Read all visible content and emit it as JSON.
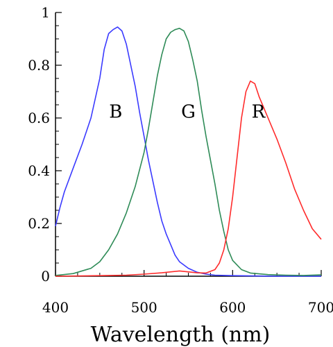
{
  "chart_data": {
    "type": "line",
    "title": "",
    "xlabel": "Wavelength (nm)",
    "ylabel": "",
    "xlim": [
      400,
      700
    ],
    "ylim": [
      0,
      1
    ],
    "x_ticks": [
      400,
      500,
      600,
      700
    ],
    "x_tick_labels": [
      "400",
      "500",
      "600",
      "700"
    ],
    "y_ticks": [
      0,
      0.2,
      0.4,
      0.6,
      0.8,
      1
    ],
    "y_tick_labels": [
      "0",
      "0.2",
      "0.4",
      "0.6",
      "0.8",
      "1"
    ],
    "grid": false,
    "legend": "none",
    "series": [
      {
        "name": "B",
        "color": "#3a3aff",
        "points": [
          [
            400,
            0.19
          ],
          [
            405,
            0.26
          ],
          [
            410,
            0.32
          ],
          [
            420,
            0.41
          ],
          [
            430,
            0.5
          ],
          [
            440,
            0.6
          ],
          [
            450,
            0.75
          ],
          [
            455,
            0.86
          ],
          [
            460,
            0.92
          ],
          [
            465,
            0.935
          ],
          [
            470,
            0.945
          ],
          [
            475,
            0.93
          ],
          [
            480,
            0.88
          ],
          [
            485,
            0.8
          ],
          [
            490,
            0.72
          ],
          [
            495,
            0.62
          ],
          [
            500,
            0.53
          ],
          [
            505,
            0.44
          ],
          [
            510,
            0.36
          ],
          [
            515,
            0.28
          ],
          [
            520,
            0.21
          ],
          [
            525,
            0.16
          ],
          [
            530,
            0.12
          ],
          [
            535,
            0.08
          ],
          [
            540,
            0.055
          ],
          [
            550,
            0.03
          ],
          [
            560,
            0.015
          ],
          [
            570,
            0.008
          ],
          [
            580,
            0.004
          ],
          [
            600,
            0.002
          ],
          [
            650,
            0.0
          ],
          [
            700,
            0.0
          ]
        ]
      },
      {
        "name": "G",
        "color": "#2e8b57",
        "points": [
          [
            400,
            0.003
          ],
          [
            420,
            0.01
          ],
          [
            440,
            0.03
          ],
          [
            450,
            0.055
          ],
          [
            460,
            0.1
          ],
          [
            470,
            0.16
          ],
          [
            480,
            0.24
          ],
          [
            490,
            0.34
          ],
          [
            500,
            0.47
          ],
          [
            505,
            0.56
          ],
          [
            510,
            0.66
          ],
          [
            515,
            0.76
          ],
          [
            520,
            0.84
          ],
          [
            525,
            0.9
          ],
          [
            530,
            0.925
          ],
          [
            535,
            0.935
          ],
          [
            540,
            0.94
          ],
          [
            545,
            0.93
          ],
          [
            550,
            0.89
          ],
          [
            555,
            0.82
          ],
          [
            560,
            0.74
          ],
          [
            565,
            0.63
          ],
          [
            570,
            0.53
          ],
          [
            575,
            0.44
          ],
          [
            580,
            0.35
          ],
          [
            585,
            0.25
          ],
          [
            590,
            0.17
          ],
          [
            595,
            0.1
          ],
          [
            600,
            0.06
          ],
          [
            610,
            0.025
          ],
          [
            620,
            0.012
          ],
          [
            640,
            0.006
          ],
          [
            660,
            0.004
          ],
          [
            680,
            0.003
          ],
          [
            700,
            0.005
          ]
        ]
      },
      {
        "name": "R",
        "color": "#ff2b2b",
        "points": [
          [
            400,
            0.0
          ],
          [
            450,
            0.002
          ],
          [
            480,
            0.004
          ],
          [
            500,
            0.008
          ],
          [
            520,
            0.013
          ],
          [
            540,
            0.02
          ],
          [
            560,
            0.013
          ],
          [
            570,
            0.012
          ],
          [
            580,
            0.025
          ],
          [
            585,
            0.05
          ],
          [
            590,
            0.1
          ],
          [
            595,
            0.18
          ],
          [
            600,
            0.3
          ],
          [
            605,
            0.45
          ],
          [
            610,
            0.6
          ],
          [
            615,
            0.7
          ],
          [
            620,
            0.74
          ],
          [
            625,
            0.73
          ],
          [
            630,
            0.68
          ],
          [
            640,
            0.6
          ],
          [
            650,
            0.52
          ],
          [
            660,
            0.43
          ],
          [
            670,
            0.33
          ],
          [
            680,
            0.25
          ],
          [
            690,
            0.18
          ],
          [
            700,
            0.14
          ]
        ]
      }
    ],
    "annotations": [
      {
        "text": "B",
        "x": 468,
        "y": 0.625
      },
      {
        "text": "G",
        "x": 550,
        "y": 0.625
      },
      {
        "text": "R",
        "x": 629,
        "y": 0.625
      }
    ]
  }
}
